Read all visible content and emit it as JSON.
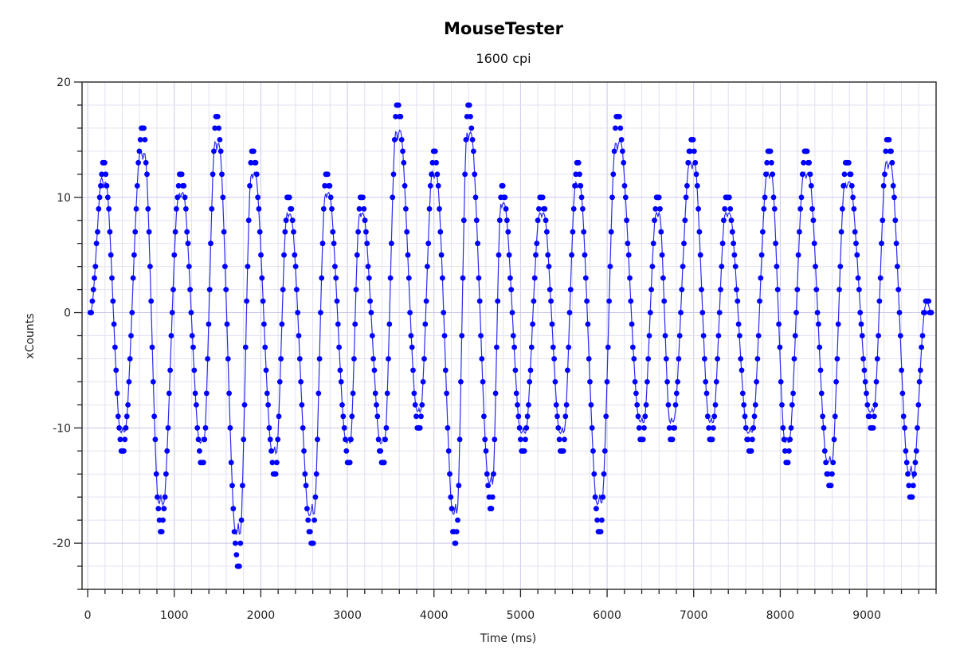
{
  "chart_data": {
    "type": "scatter",
    "title": "MouseTester",
    "subtitle": "1600 cpi",
    "xlabel": "Time (ms)",
    "ylabel": "xCounts",
    "xlim": [
      -65,
      9800
    ],
    "ylim": [
      -24,
      20
    ],
    "x_ticks": [
      0,
      1000,
      2000,
      3000,
      4000,
      5000,
      6000,
      7000,
      8000,
      9000
    ],
    "x_tick_labels": [
      "0",
      "1000",
      "2000",
      "3000",
      "4000",
      "5000",
      "6000",
      "7000",
      "8000",
      "9000"
    ],
    "x_minor_step": 200,
    "y_ticks": [
      20,
      10,
      0,
      -10,
      -20
    ],
    "y_tick_labels": [
      "20",
      "10",
      "0",
      "-10",
      "-20"
    ],
    "y_minor_step": 2,
    "grid": true,
    "sample_interval_ms": 12,
    "series": [
      {
        "name": "xCounts",
        "color": "#0000ff",
        "line_color": "#2a2af0",
        "markers": "dots",
        "extrema": [
          [
            30,
            0
          ],
          [
            184,
            13
          ],
          [
            405,
            -12
          ],
          [
            637,
            16
          ],
          [
            845,
            -19
          ],
          [
            1075,
            12
          ],
          [
            1325,
            -13
          ],
          [
            1490,
            17
          ],
          [
            1740,
            -22
          ],
          [
            1905,
            14
          ],
          [
            2160,
            -14
          ],
          [
            2318,
            10
          ],
          [
            2594,
            -20
          ],
          [
            2760,
            12
          ],
          [
            3017,
            -13
          ],
          [
            3155,
            10
          ],
          [
            3413,
            -13
          ],
          [
            3579,
            18
          ],
          [
            3827,
            -10
          ],
          [
            4002,
            14
          ],
          [
            4250,
            -20
          ],
          [
            4397,
            18
          ],
          [
            4664,
            -17
          ],
          [
            4784,
            11
          ],
          [
            5032,
            -12
          ],
          [
            5244,
            10
          ],
          [
            5483,
            -12
          ],
          [
            5658,
            13
          ],
          [
            5915,
            -19
          ],
          [
            6118,
            17
          ],
          [
            6403,
            -11
          ],
          [
            6587,
            10
          ],
          [
            6743,
            -11
          ],
          [
            6982,
            15
          ],
          [
            7203,
            -11
          ],
          [
            7387,
            10
          ],
          [
            7654,
            -12
          ],
          [
            7875,
            14
          ],
          [
            8077,
            -13
          ],
          [
            8298,
            14
          ],
          [
            8574,
            -15
          ],
          [
            8767,
            13
          ],
          [
            9062,
            -10
          ],
          [
            9245,
            15
          ],
          [
            9512,
            -16
          ],
          [
            9690,
            1
          ],
          [
            9745,
            0
          ]
        ]
      }
    ]
  }
}
